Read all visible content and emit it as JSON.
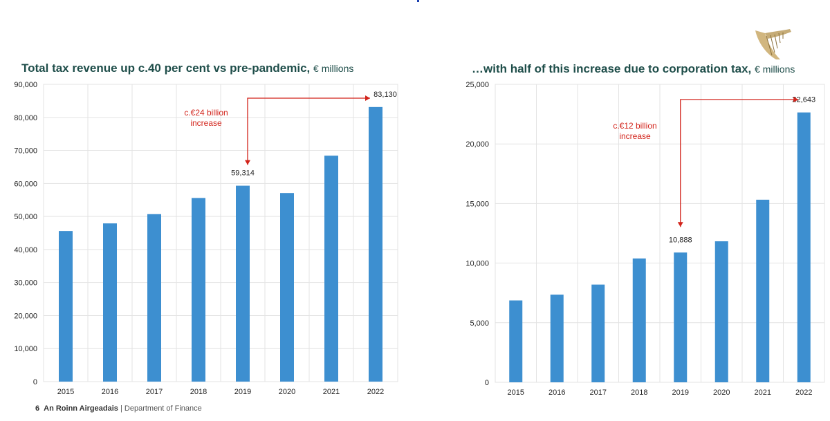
{
  "charts": {
    "left": {
      "title": "Total tax revenue up c.40 per cent vs pre-pandemic,",
      "unit": "€ millions"
    },
    "right": {
      "title": "…with half of this increase due to corporation tax,",
      "unit": "€ millions"
    }
  },
  "chart_data": [
    {
      "type": "bar",
      "title": "Total tax revenue up c.40 per cent vs pre-pandemic, € millions",
      "categories": [
        "2015",
        "2016",
        "2017",
        "2018",
        "2019",
        "2020",
        "2021",
        "2022"
      ],
      "values": [
        45600,
        47900,
        50700,
        55600,
        59314,
        57100,
        68400,
        83130
      ],
      "ylim": [
        0,
        90000
      ],
      "yticks": [
        "0",
        "10,000",
        "20,000",
        "30,000",
        "40,000",
        "50,000",
        "60,000",
        "70,000",
        "80,000",
        "90,000"
      ],
      "data_labels": {
        "2019": "59,314",
        "2022": "83,130"
      },
      "annotation": {
        "line1": "c.€24 billion",
        "line2": "increase",
        "from": "2019",
        "to": "2022"
      },
      "grid": true,
      "color": "#3d8fd0"
    },
    {
      "type": "bar",
      "title": "…with half of this increase due to corporation tax, € millions",
      "categories": [
        "2015",
        "2016",
        "2017",
        "2018",
        "2019",
        "2020",
        "2021",
        "2022"
      ],
      "values": [
        6870,
        7350,
        8200,
        10390,
        10888,
        11830,
        15320,
        22643
      ],
      "ylim": [
        0,
        25000
      ],
      "yticks": [
        "0",
        "5,000",
        "10,000",
        "15,000",
        "20,000",
        "25,000"
      ],
      "data_labels": {
        "2019": "10,888",
        "2022": "22,643"
      },
      "annotation": {
        "line1": "c.€12 billion",
        "line2": "increase",
        "from": "2019",
        "to": "2022"
      },
      "grid": true,
      "color": "#3d8fd0"
    }
  ],
  "footer": {
    "page": "6",
    "org_irish": "An Roinn Airgeadais",
    "separator": "|",
    "org_english": "Department of Finance"
  },
  "colors": {
    "bar": "#3d8fd0",
    "annotation": "#d2231a",
    "title": "#1f4e4a",
    "grid": "#e3e3e3"
  }
}
